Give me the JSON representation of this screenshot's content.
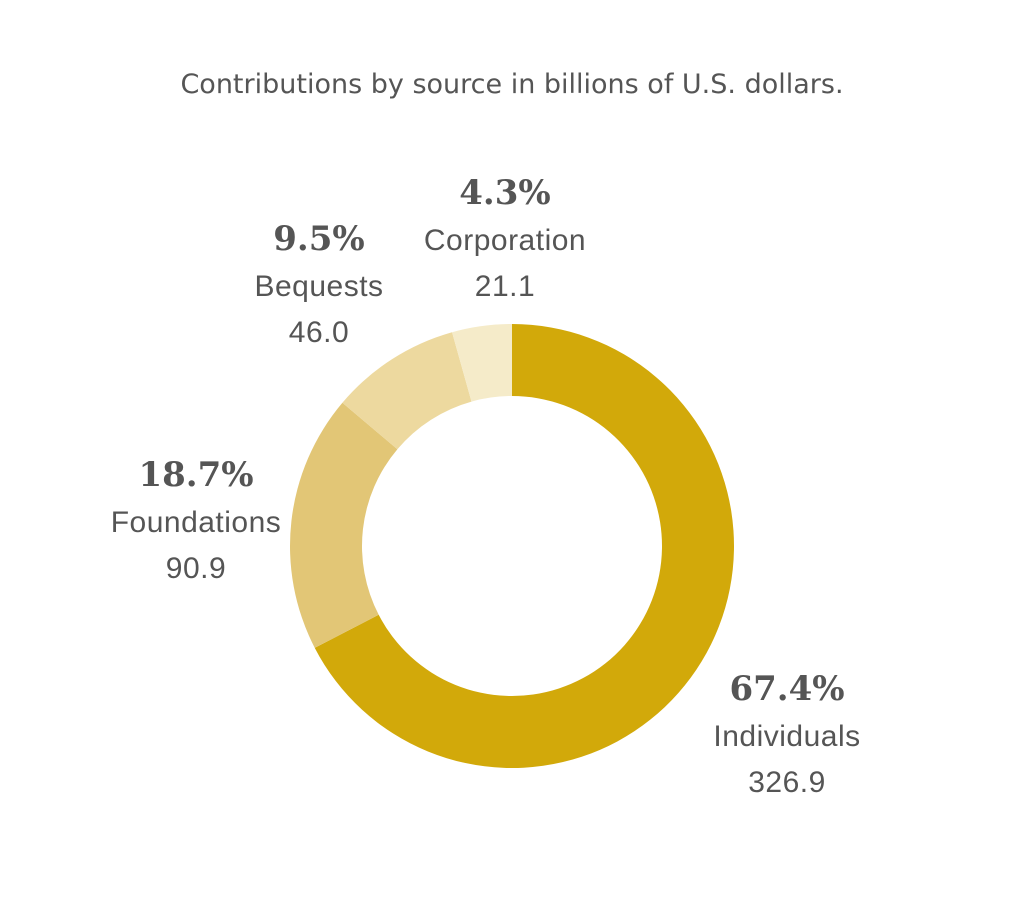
{
  "chart_data": {
    "type": "pie",
    "title": "Contributions by source in billions of U.S. dollars.",
    "donut": true,
    "slices": [
      {
        "label": "Individuals",
        "value": 326.9,
        "percent_label": "67.4%",
        "value_label": "326.9",
        "color": "#D2A90A"
      },
      {
        "label": "Foundations",
        "value": 90.9,
        "percent_label": "18.7%",
        "value_label": "90.9",
        "color": "#E2C676"
      },
      {
        "label": "Bequests",
        "value": 46.0,
        "percent_label": "9.5%",
        "value_label": "46.0",
        "color": "#EDD99F"
      },
      {
        "label": "Corporation",
        "value": 21.1,
        "percent_label": "4.3%",
        "value_label": "21.1",
        "color": "#F5EBC9"
      }
    ]
  }
}
